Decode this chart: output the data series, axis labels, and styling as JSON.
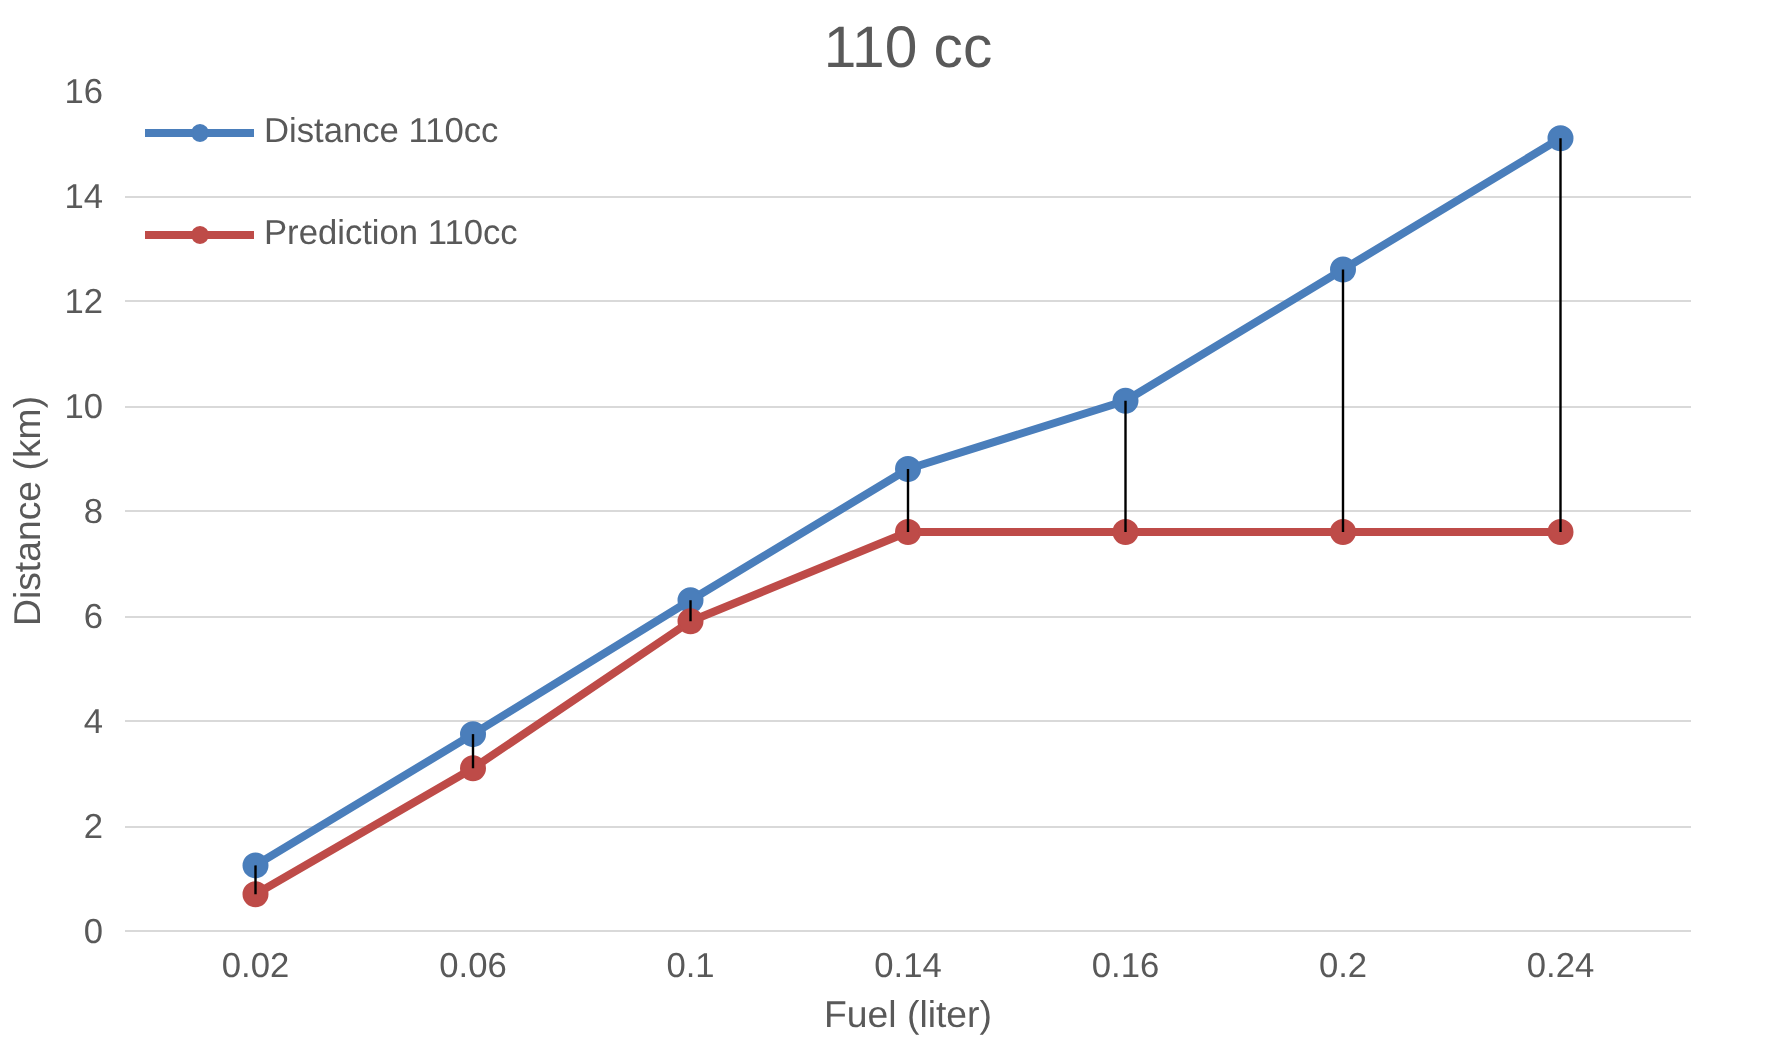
{
  "chart_data": {
    "type": "line",
    "title": "110 cc",
    "xlabel": "Fuel (liter)",
    "ylabel": "Distance (km)",
    "categories": [
      "0.02",
      "0.06",
      "0.1",
      "0.14",
      "0.16",
      "0.2",
      "0.24"
    ],
    "series": [
      {
        "name": "Distance 110cc",
        "color": "#4a7ebb",
        "values": [
          1.25,
          3.75,
          6.3,
          8.8,
          10.1,
          12.6,
          15.1
        ]
      },
      {
        "name": "Prediction 110cc",
        "color": "#be4b48",
        "values": [
          0.7,
          3.1,
          5.9,
          7.6,
          7.6,
          7.6,
          7.6
        ],
        "errors": [
          [
            0.7,
            1.25
          ],
          [
            3.1,
            3.75
          ],
          [
            5.9,
            6.3
          ],
          [
            7.6,
            8.8
          ],
          [
            7.6,
            10.1
          ],
          [
            7.6,
            12.6
          ],
          [
            7.6,
            15.1
          ]
        ]
      }
    ],
    "ylim": [
      0,
      16
    ],
    "yticks": [
      0,
      2,
      4,
      6,
      8,
      10,
      12,
      14,
      16
    ],
    "grid": "y",
    "legend": "top left",
    "marker": "circle",
    "line_style": "solid"
  }
}
